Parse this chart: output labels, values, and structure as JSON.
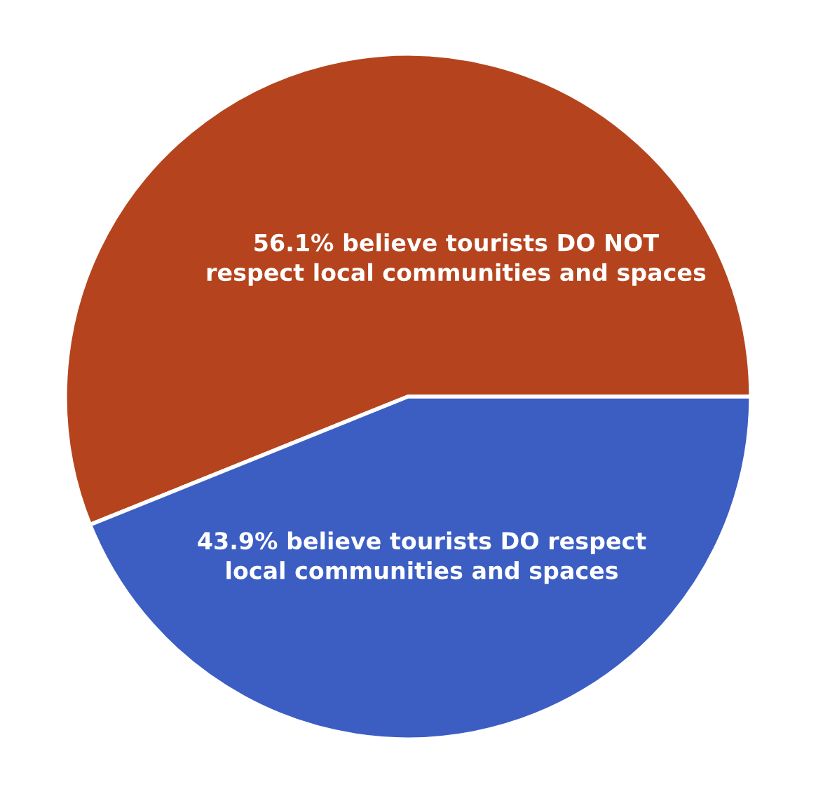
{
  "chart_data": {
    "type": "pie",
    "categories": [
      "believe tourists DO NOT\nrespect local communities and spaces",
      "believe tourists DO respect\nlocal communities and spaces"
    ],
    "values": [
      56.1,
      43.9
    ],
    "value_labels": [
      "56.1%",
      "43.9%"
    ],
    "colors": [
      "#b5441e",
      "#3c5ec3"
    ]
  }
}
